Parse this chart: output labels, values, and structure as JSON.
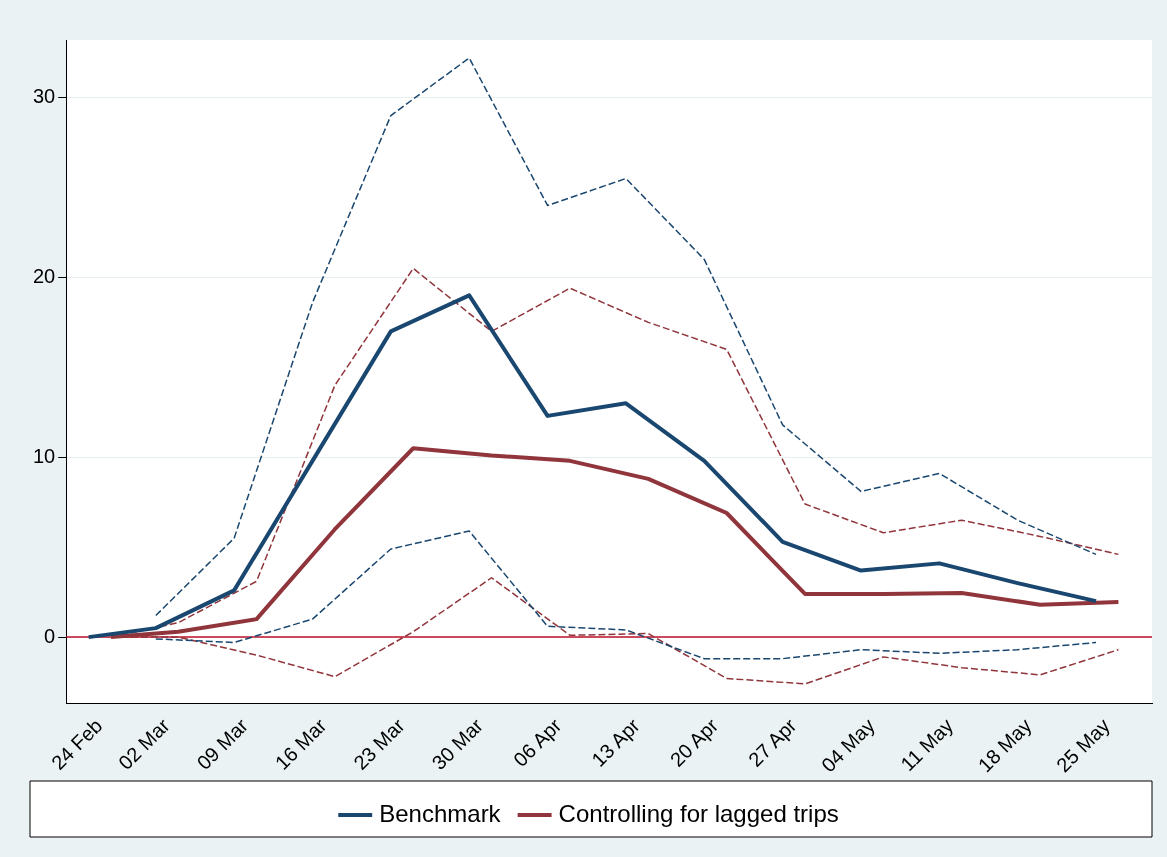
{
  "chart_data": {
    "type": "line",
    "xlim": [
      "--02-21",
      "--05-29"
    ],
    "xticks": [
      {
        "value": "--02-24",
        "label": "24 Feb"
      },
      {
        "value": "--03-02",
        "label": "02 Mar"
      },
      {
        "value": "--03-09",
        "label": "09 Mar"
      },
      {
        "value": "--03-16",
        "label": "16 Mar"
      },
      {
        "value": "--03-23",
        "label": "23 Mar"
      },
      {
        "value": "--03-30",
        "label": "30 Mar"
      },
      {
        "value": "--04-06",
        "label": "06 Apr"
      },
      {
        "value": "--04-13",
        "label": "13 Apr"
      },
      {
        "value": "--04-20",
        "label": "20 Apr"
      },
      {
        "value": "--04-27",
        "label": "27 Apr"
      },
      {
        "value": "--05-04",
        "label": "04 May"
      },
      {
        "value": "--05-11",
        "label": "11 May"
      },
      {
        "value": "--05-18",
        "label": "18 May"
      },
      {
        "value": "--05-25",
        "label": "25 May"
      }
    ],
    "ylim": [
      -3.7,
      33.2
    ],
    "yticks": [
      0,
      10,
      20,
      30
    ],
    "grid": "y",
    "legend": "bottom",
    "line_style": "solid",
    "marker": "none",
    "ref_lines": [
      {
        "axis": "y",
        "value": 0,
        "color": "#c0102a"
      }
    ],
    "series": [
      {
        "name": "Benchmark",
        "color": "#1a476f",
        "x": [
          "--02-23",
          "--03-01",
          "--03-08",
          "--03-15",
          "--03-22",
          "--03-29",
          "--04-05",
          "--04-12",
          "--04-19",
          "--04-26",
          "--05-03",
          "--05-10",
          "--05-17",
          "--05-24"
        ],
        "values": [
          0,
          0.5,
          2.6,
          9.8,
          17,
          19,
          12.3,
          13,
          9.8,
          5.3,
          3.7,
          4.1,
          3.0,
          2.0
        ]
      },
      {
        "name": "Controlling for lagged trips",
        "color": "#90353b",
        "x": [
          "--02-25",
          "--03-03",
          "--03-10",
          "--03-17",
          "--03-24",
          "--03-31",
          "--04-07",
          "--04-14",
          "--04-21",
          "--04-28",
          "--05-05",
          "--05-12",
          "--05-19",
          "--05-26"
        ],
        "values": [
          0,
          0.3,
          1.0,
          6.0,
          10.5,
          10.1,
          9.8,
          8.8,
          6.9,
          2.4,
          2.4,
          2.45,
          1.8,
          1.95
        ]
      },
      {
        "color": "#1a476f",
        "line_style": "dashed",
        "x": [
          "--03-01",
          "--03-08",
          "--03-15",
          "--03-22",
          "--03-29",
          "--04-05",
          "--04-12",
          "--04-19",
          "--04-26",
          "--05-03",
          "--05-10",
          "--05-17",
          "--05-24"
        ],
        "values": [
          1.2,
          5.5,
          18.6,
          29,
          32.2,
          24,
          25.5,
          21,
          11.8,
          8.1,
          9.1,
          6.5,
          4.6
        ]
      },
      {
        "color": "#1a476f",
        "line_style": "dashed",
        "x": [
          "--03-01",
          "--03-08",
          "--03-15",
          "--03-22",
          "--03-29",
          "--04-05",
          "--04-12",
          "--04-19",
          "--04-26",
          "--05-03",
          "--05-10",
          "--05-17",
          "--05-24"
        ],
        "values": [
          -0.1,
          -0.3,
          1.0,
          4.9,
          5.9,
          0.6,
          0.4,
          -1.2,
          -1.2,
          -0.7,
          -0.9,
          -0.7,
          -0.3
        ]
      },
      {
        "color": "#90353b",
        "line_style": "dashed",
        "x": [
          "--02-25",
          "--03-03",
          "--03-10",
          "--03-17",
          "--03-24",
          "--03-31",
          "--04-07",
          "--04-14",
          "--04-21",
          "--04-28",
          "--05-05",
          "--05-12",
          "--05-19",
          "--05-26"
        ],
        "values": [
          0,
          0.8,
          3.1,
          14,
          20.5,
          17,
          19.4,
          17.5,
          16,
          7.4,
          5.8,
          6.5,
          5.6,
          4.6
        ]
      },
      {
        "color": "#90353b",
        "line_style": "dashed",
        "x": [
          "--02-25",
          "--03-03",
          "--03-10",
          "--03-17",
          "--03-24",
          "--03-31",
          "--04-07",
          "--04-14",
          "--04-21",
          "--04-28",
          "--05-05",
          "--05-12",
          "--05-19",
          "--05-26"
        ],
        "values": [
          0,
          0,
          -1.0,
          -2.2,
          0.3,
          3.3,
          0.1,
          0.2,
          -2.3,
          -2.6,
          -1.1,
          -1.7,
          -2.1,
          -0.7
        ]
      }
    ]
  }
}
